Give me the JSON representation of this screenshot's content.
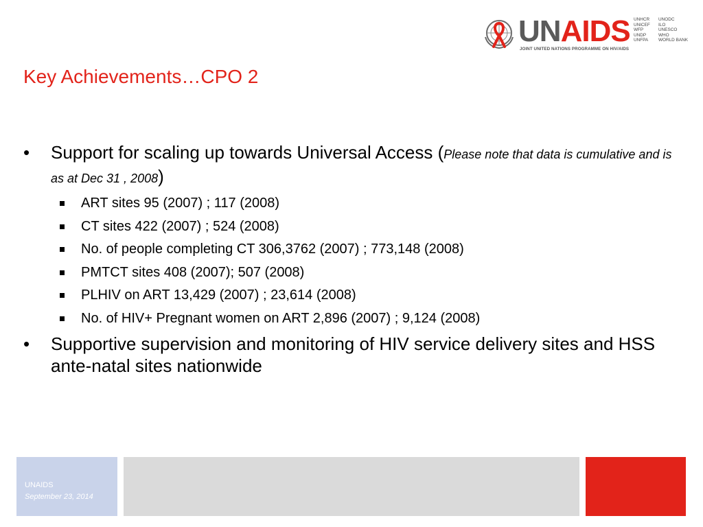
{
  "logo": {
    "un": "UN",
    "aids": "AIDS",
    "tagline": "JOINT UNITED NATIONS PROGRAMME ON HIV/AIDS",
    "cosponsors_col1": [
      "UNHCR",
      "UNICEF",
      "WFP",
      "UNDP",
      "UNFPA"
    ],
    "cosponsors_col2": [
      "UNODC",
      "ILO",
      "UNESCO",
      "WHO",
      "WORLD BANK"
    ]
  },
  "title": "Key Achievements…CPO 2",
  "bullets": {
    "b1_text": "Support for scaling up towards Universal Access (",
    "b1_note": "Please note that data is cumulative and is as at Dec 31 , 2008",
    "b1_close": ")",
    "sub": [
      "ART sites  95 (2007) ; 117 (2008)",
      "CT sites  422 (2007) ; 524 (2008)",
      "No. of people completing CT 306,3762 (2007) ; 773,148 (2008)",
      "PMTCT sites 408 (2007);  507 (2008)",
      "PLHIV on ART 13,429 (2007) ; 23,614 (2008)",
      "No. of HIV+ Pregnant women on ART  2,896 (2007) ; 9,124 (2008)"
    ],
    "b2_text": "Supportive supervision and monitoring of HIV service delivery sites and HSS ante-natal sites nationwide",
    "bullet_char": "•"
  },
  "footer": {
    "org": "UNAIDS",
    "date": "September 23, 2014"
  },
  "colors": {
    "accent_red": "#e2231a",
    "footer_blue": "#c9d3ea",
    "footer_gray": "#dadada"
  }
}
